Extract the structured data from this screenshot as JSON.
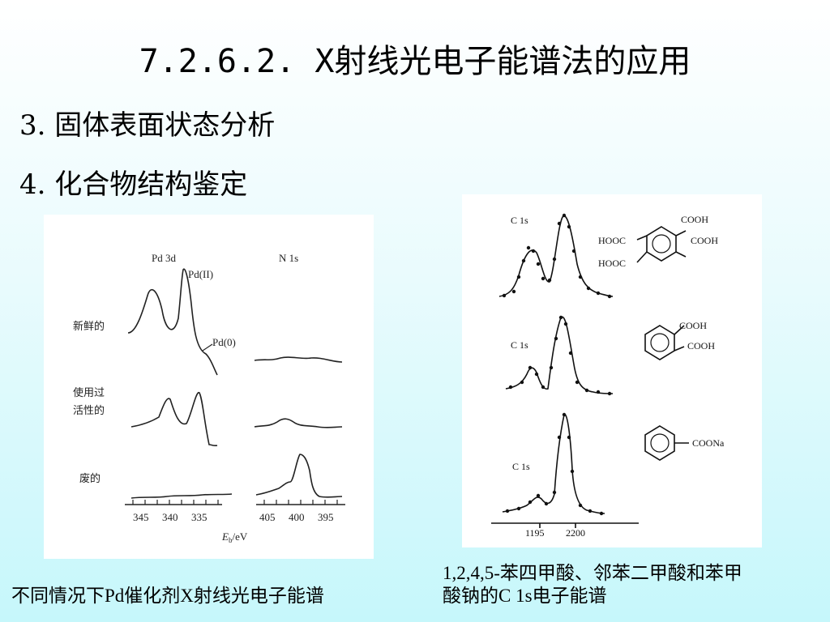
{
  "slide": {
    "title": "7.2.6.2.  X射线光电子能谱法的应用",
    "bullets": [
      {
        "num": "3.",
        "text": "固体表面状态分析"
      },
      {
        "num": "4.",
        "text": "化合物结构鉴定"
      }
    ]
  },
  "left_figure": {
    "header_pd": "Pd 3d",
    "header_n": "N 1s",
    "label_pd2": "Pd(II)",
    "label_pd0": "Pd(0)",
    "row_labels": [
      "新鲜的",
      "使用过",
      "活性的",
      "废的"
    ],
    "axis_ticks_pd": [
      "345",
      "340",
      "335"
    ],
    "axis_ticks_n": [
      "405",
      "400",
      "395"
    ],
    "axis_label_main": "E",
    "axis_label_sub": "b",
    "axis_label_unit": "/eV",
    "caption": "不同情况下Pd催化剂X射线光电子能谱"
  },
  "right_figure": {
    "peak_labels": [
      "C 1s",
      "C 1s",
      "C 1s"
    ],
    "structure_labels": {
      "s1_top": "COOH",
      "s1_left": "HOOC",
      "s1_right": "COOH",
      "s1_bottom": "HOOC",
      "s2_top": "COOH",
      "s2_right": "COOH",
      "s3_right": "COONa"
    },
    "axis_ticks": [
      "1195",
      "2200"
    ],
    "caption_line1": "1,2,4,5-苯四甲酸、邻苯二甲酸和苯甲",
    "caption_line2": "酸钠的C 1s电子能谱"
  }
}
